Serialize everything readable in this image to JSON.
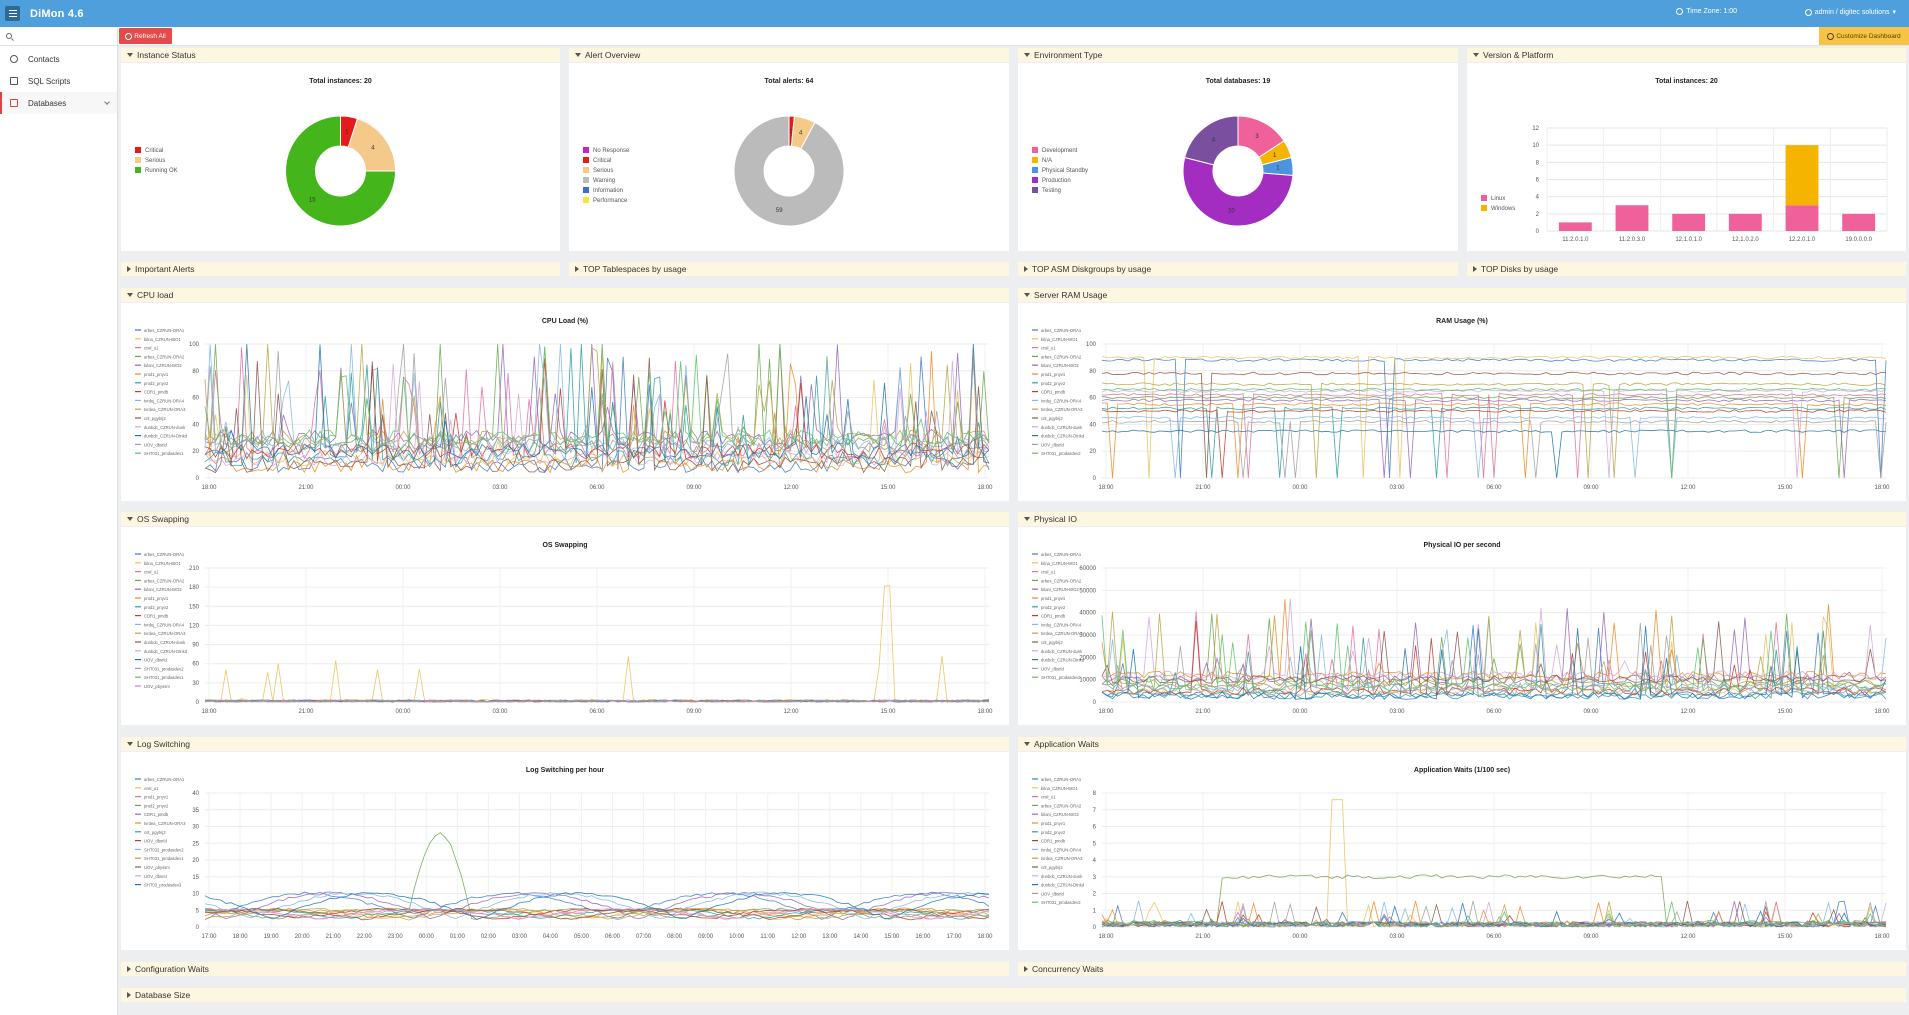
{
  "app": {
    "title": "DiMon 4.6",
    "timezone": "Time Zone: 1:00",
    "user": "admin / digitec solutions"
  },
  "toolbar": {
    "refresh": "Refresh All",
    "customize": "Customize Dashboard"
  },
  "sidebar": {
    "items": [
      {
        "label": "Contacts",
        "icon": "contacts-icon"
      },
      {
        "label": "SQL Scripts",
        "icon": "script-icon"
      },
      {
        "label": "Databases",
        "icon": "database-icon"
      }
    ]
  },
  "colors": {
    "accent": "#4e9fdc",
    "refresh": "#e24c4c",
    "customize": "#f6c344"
  },
  "panels": {
    "instance_status": {
      "title": "Instance Status",
      "chart_title": "Total instances: 20"
    },
    "alert_overview": {
      "title": "Alert Overview",
      "chart_title": "Total alerts: 64"
    },
    "environment_type": {
      "title": "Environment Type",
      "chart_title": "Total databases: 19"
    },
    "version_platform": {
      "title": "Version & Platform",
      "chart_title": "Total instances: 20"
    },
    "important_alerts": {
      "title": "Important Alerts"
    },
    "top_tablespaces": {
      "title": "TOP Tablespaces by usage"
    },
    "top_asm": {
      "title": "TOP ASM Diskgroups by usage"
    },
    "top_disks": {
      "title": "TOP Disks by usage"
    },
    "cpu_load": {
      "title": "CPU load",
      "chart_title": "CPU Load (%)"
    },
    "server_ram": {
      "title": "Server RAM Usage",
      "chart_title": "RAM Usage (%)"
    },
    "os_swapping": {
      "title": "OS Swapping",
      "chart_title": "OS Swapping"
    },
    "physical_io": {
      "title": "Physical IO",
      "chart_title": "Physical IO per second"
    },
    "log_switching": {
      "title": "Log Switching",
      "chart_title": "Log Switching per hour"
    },
    "app_waits": {
      "title": "Application Waits",
      "chart_title": "Application Waits (1/100 sec)"
    },
    "config_waits": {
      "title": "Configuration Waits"
    },
    "concurrency_waits": {
      "title": "Concurrency Waits"
    },
    "database_size": {
      "title": "Database Size"
    }
  },
  "chart_data": [
    {
      "id": "instance-status",
      "type": "pie",
      "title": "Total instances: 20",
      "labels": [
        "Critical",
        "Serious",
        "Running OK"
      ],
      "values": [
        1,
        4,
        15
      ],
      "colors": [
        "#e41a1c",
        "#f5c98a",
        "#44b51a"
      ]
    },
    {
      "id": "alert-overview",
      "type": "pie",
      "title": "Total alerts: 64",
      "labels": [
        "No Response",
        "Critical",
        "Serious",
        "Warning",
        "Information",
        "Performance"
      ],
      "values": [
        0,
        1,
        4,
        59,
        0,
        0
      ],
      "colors": [
        "#c71fd4",
        "#e41a1c",
        "#f5c98a",
        "#bbbbbb",
        "#3b6fcf",
        "#f3e63a"
      ]
    },
    {
      "id": "environment-type",
      "type": "pie",
      "title": "Total databases: 19",
      "labels": [
        "Development",
        "N/A",
        "Physical Standby",
        "Production",
        "Testing"
      ],
      "values": [
        3,
        1,
        1,
        10,
        4
      ],
      "colors": [
        "#f0609a",
        "#f5b400",
        "#4c93e0",
        "#a22dc0",
        "#7b4fa0"
      ]
    },
    {
      "id": "version-platform",
      "type": "bar",
      "title": "Total instances: 20",
      "categories": [
        "11.2.0.1.0",
        "11.2.0.3.0",
        "12.1.0.1.0",
        "12.1.0.2.0",
        "12.2.0.1.0",
        "19.0.0.0.0"
      ],
      "series": [
        {
          "name": "Windows",
          "values": [
            0,
            0,
            0,
            0,
            7,
            0
          ],
          "color": "#f5b400"
        },
        {
          "name": "Linux",
          "values": [
            1,
            3,
            2,
            2,
            3,
            2
          ],
          "color": "#f0609a"
        }
      ],
      "ylim": [
        0,
        12
      ],
      "yticks": [
        0,
        2,
        4,
        6,
        8,
        10,
        12
      ]
    },
    {
      "id": "cpu-load",
      "type": "line",
      "title": "CPU Load (%)",
      "ylim": [
        0,
        100
      ],
      "yticks": [
        0,
        20,
        40,
        60,
        80,
        100
      ],
      "xticks": [
        "18:00",
        "21:00",
        "00:00",
        "03:00",
        "06:00",
        "09:00",
        "12:00",
        "15:00",
        "18:00"
      ],
      "series": [
        "arbes_CZRUN-ORA1",
        "bilna_CZRUN-BIO1",
        "cnsl_u1",
        "arbes_CZRUN-ORA2",
        "bilani_CZRUN-BIO2",
        "prod1_pnyv1",
        "prod2_pnyv2",
        "CDR1_pmdb",
        "tvrdej_CZRUN-ORA4",
        "tvrdea_CZRUN-ORA3",
        "crit_pgybrj2",
        "dunbdc_CZRUN-dunk",
        "dunbdc_CZRUN-Dtnkd",
        "UOV_dbsrld",
        "SHT031_prodasdev1"
      ]
    },
    {
      "id": "ram-usage",
      "type": "line",
      "title": "RAM Usage (%)",
      "ylim": [
        0,
        100
      ],
      "yticks": [
        0,
        20,
        40,
        60,
        80,
        100
      ],
      "xticks": [
        "18:00",
        "21:00",
        "00:00",
        "03:00",
        "06:00",
        "09:00",
        "12:00",
        "15:00",
        "18:00"
      ],
      "series": [
        "arbes_CZRUN-ORA1",
        "bilna_CZRUN-BIO1",
        "cnsl_u1",
        "arbes_CZRUN-ORA2",
        "bilani_CZRUN-BIO2",
        "prod1_pnyv1",
        "prod2_pnyv2",
        "CDR1_pmdb",
        "tvrdej_CZRUN-ORA4",
        "tvrdea_CZRUN-ORA3",
        "crit_pgybrj2",
        "dunbdc_CZRUN-dunk",
        "dunbdc_CZRUN-Dtnkd",
        "UOV_dbsrld",
        "SHT031_prodasdev2"
      ]
    },
    {
      "id": "os-swapping",
      "type": "line",
      "title": "OS Swapping",
      "ylim": [
        0,
        210
      ],
      "yticks": [
        0,
        30,
        60,
        90,
        120,
        150,
        180,
        210
      ],
      "xticks": [
        "18:00",
        "21:00",
        "00:00",
        "03:00",
        "06:00",
        "09:00",
        "12:00",
        "15:00",
        "18:00"
      ],
      "series": [
        "arbes_CZRUN-ORA1",
        "bilna_CZRUN-BIO1",
        "cnsl_u1",
        "arbes_CZRUN-ORA2",
        "bilani_CZRUN-BIO2",
        "prod1_pnyv1",
        "prod2_pnyv2",
        "CDR1_pmdb",
        "tvrdej_CZRUN-ORA4",
        "tvrdea_CZRUN-ORA3",
        "dunbdc_CZRUN-dunk",
        "dunbdc_CZRUN-Dtnkd",
        "UOV_dbsrld",
        "SHT031_prodasdev2",
        "SHT031_prodasdev1",
        "UOV_pbyssm"
      ]
    },
    {
      "id": "physical-io",
      "type": "line",
      "title": "Physical IO per second",
      "ylim": [
        0,
        60000
      ],
      "yticks": [
        0,
        10000,
        20000,
        30000,
        40000,
        50000,
        60000
      ],
      "xticks": [
        "18:00",
        "21:00",
        "00:00",
        "03:00",
        "06:00",
        "09:00",
        "12:00",
        "15:00",
        "18:00"
      ],
      "series": [
        "arbes_CZRUN-ORA1",
        "bilna_CZRUN-BIO1",
        "cnsl_u1",
        "arbes_CZRUN-ORA2",
        "bilani_CZRUN-BIO2",
        "prod1_pnyv1",
        "prod2_pnyv2",
        "CDR1_pmdb",
        "tvrdej_CZRUN-ORA4",
        "tvrdea_CZRUN-ORA3",
        "crit_pgybrj2",
        "dunbdc_CZRUN-dunk",
        "dunbdc_CZRUN-Dtnkd",
        "UOV_dbsrld",
        "SHT031_prodasdev2"
      ]
    },
    {
      "id": "log-switching",
      "type": "line",
      "title": "Log Switching per hour",
      "ylim": [
        0,
        40
      ],
      "yticks": [
        0,
        5,
        10,
        15,
        20,
        25,
        30,
        35,
        40
      ],
      "xticks": [
        "17:00",
        "18:00",
        "19:00",
        "20:00",
        "21:00",
        "22:00",
        "23:00",
        "00:00",
        "01:00",
        "02:00",
        "03:00",
        "04:00",
        "05:00",
        "06:00",
        "07:00",
        "08:00",
        "09:00",
        "10:00",
        "11:00",
        "12:00",
        "13:00",
        "14:00",
        "15:00",
        "16:00",
        "17:00",
        "18:00"
      ],
      "series": [
        "arbes_CZRUN-ORA1",
        "cnsl_u1",
        "prod1_pnyv1",
        "prod2_pnyv2",
        "CDR1_pmdb",
        "tvrdea_CZRUN-ORA3",
        "crit_pgybrj2",
        "UOV_dbsrld",
        "SHT032_prodasdev2",
        "SHT031_prodasdev1",
        "UOV_pbyssm",
        "UOV_dbsrel",
        "SHT03_prodasdev3"
      ]
    },
    {
      "id": "app-waits",
      "type": "line",
      "title": "Application Waits (1/100 sec)",
      "ylim": [
        0,
        8
      ],
      "yticks": [
        0,
        1,
        2,
        3,
        4,
        5,
        6,
        7,
        8
      ],
      "xticks": [
        "18:00",
        "21:00",
        "00:00",
        "03:00",
        "06:00",
        "09:00",
        "12:00",
        "15:00",
        "18:00"
      ],
      "series": [
        "arbes_CZRUN-ORA1",
        "bilna_CZRUN-BIO1",
        "cnsl_u1",
        "arbes_CZRUN-ORA2",
        "bilani_CZRUN-BIO2",
        "prod1_pnyv1",
        "prod2_pnyv2",
        "CDR1_pmdb",
        "tvrdej_CZRUN-ORA4",
        "tvrdea_CZRUN-ORA3",
        "crit_pgybrj2",
        "dunbdc_CZRUN-dunk",
        "dunbdc_CZRUN-Dtnkd",
        "UOV_dbsrld",
        "SHT031_prodasdev2"
      ]
    }
  ]
}
